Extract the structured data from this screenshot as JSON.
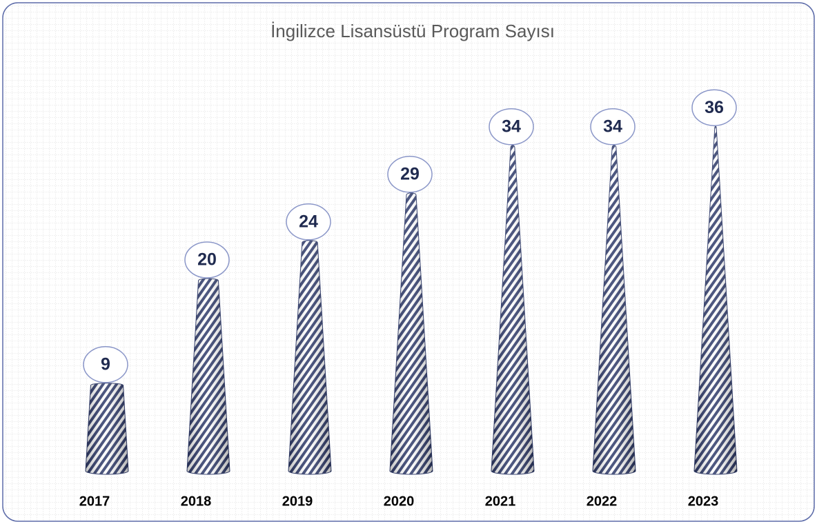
{
  "chart_data": {
    "type": "cone",
    "title": "İngilizce Lisansüstü Program Sayısı",
    "categories": [
      "2017",
      "2018",
      "2019",
      "2020",
      "2021",
      "2022",
      "2023"
    ],
    "values": [
      9,
      20,
      24,
      29,
      34,
      34,
      36
    ],
    "color": "#2f3b6b"
  }
}
